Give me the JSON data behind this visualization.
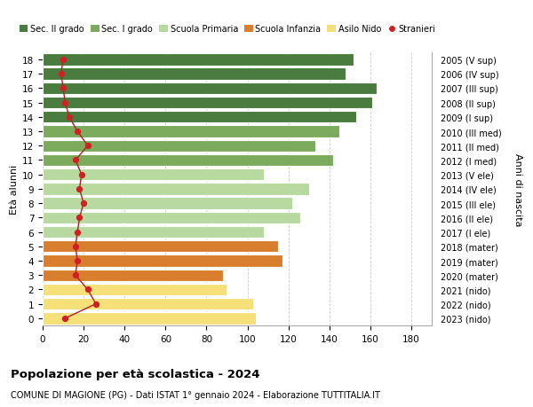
{
  "ages": [
    18,
    17,
    16,
    15,
    14,
    13,
    12,
    11,
    10,
    9,
    8,
    7,
    6,
    5,
    4,
    3,
    2,
    1,
    0
  ],
  "bar_values": [
    152,
    148,
    163,
    161,
    153,
    145,
    133,
    142,
    108,
    130,
    122,
    126,
    108,
    115,
    117,
    88,
    90,
    103,
    104
  ],
  "stranieri": [
    10,
    9,
    10,
    11,
    13,
    17,
    22,
    16,
    19,
    18,
    20,
    18,
    17,
    16,
    17,
    16,
    22,
    26,
    11
  ],
  "right_labels": [
    "2005 (V sup)",
    "2006 (IV sup)",
    "2007 (III sup)",
    "2008 (II sup)",
    "2009 (I sup)",
    "2010 (III med)",
    "2011 (II med)",
    "2012 (I med)",
    "2013 (V ele)",
    "2014 (IV ele)",
    "2015 (III ele)",
    "2016 (II ele)",
    "2017 (I ele)",
    "2018 (mater)",
    "2019 (mater)",
    "2020 (mater)",
    "2021 (nido)",
    "2022 (nido)",
    "2023 (nido)"
  ],
  "bar_colors": [
    "#4a7c3f",
    "#4a7c3f",
    "#4a7c3f",
    "#4a7c3f",
    "#4a7c3f",
    "#7dab5e",
    "#7dab5e",
    "#7dab5e",
    "#b8d9a0",
    "#b8d9a0",
    "#b8d9a0",
    "#b8d9a0",
    "#b8d9a0",
    "#d97e2e",
    "#d97e2e",
    "#d97e2e",
    "#f5e07a",
    "#f5e07a",
    "#f5e07a"
  ],
  "legend_labels": [
    "Sec. II grado",
    "Sec. I grado",
    "Scuola Primaria",
    "Scuola Infanzia",
    "Asilo Nido",
    "Stranieri"
  ],
  "legend_colors": [
    "#4a7c3f",
    "#7dab5e",
    "#b8d9a0",
    "#d97e2e",
    "#f5e07a",
    "#cc2222"
  ],
  "ylabel": "Età alunni",
  "right_ylabel": "Anni di nascita",
  "title": "Popolazione per età scolastica - 2024",
  "subtitle": "COMUNE DI MAGIONE (PG) - Dati ISTAT 1° gennaio 2024 - Elaborazione TUTTITALIA.IT",
  "bg_color": "#ffffff",
  "grid_color": "#cccccc",
  "bar_edge_color": "#ffffff",
  "stranieri_color": "#cc2222",
  "stranieri_line_color": "#aa2222"
}
